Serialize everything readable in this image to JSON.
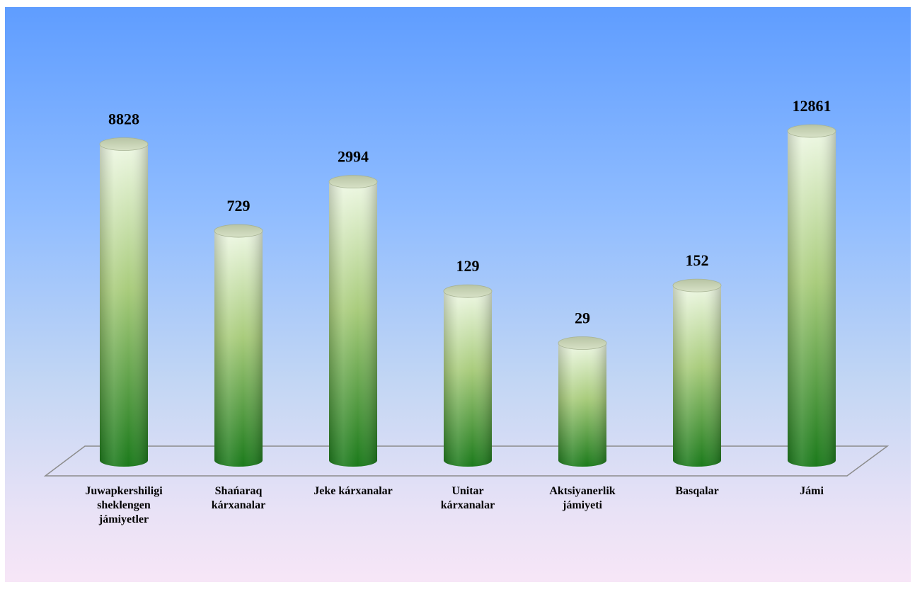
{
  "chart_data": {
    "type": "bar",
    "style": "3d-cylinder",
    "categories": [
      "Juwapkershiligi sheklengen jámiyetler",
      "Shańaraq kárxanalar",
      "Jeke kárxanalar",
      "Unitar kárxanalar",
      "Aktsiyanerlik jámiyeti",
      "Basqalar",
      "Jámi"
    ],
    "category_lines": [
      [
        "Juwapkershiligi",
        "sheklengen",
        "jámiyetler"
      ],
      [
        "Shańaraq",
        "kárxanalar"
      ],
      [
        "Jeke kárxanalar"
      ],
      [
        "Unitar",
        "kárxanalar"
      ],
      [
        "Aktsiyanerlik",
        "jámiyeti"
      ],
      [
        "Basqalar"
      ],
      [
        "Jámi"
      ]
    ],
    "values": [
      8828,
      729,
      2994,
      129,
      29,
      152,
      12861
    ],
    "value_labels": [
      "8828",
      "729",
      "2994",
      "129",
      "29",
      "152",
      "12861"
    ],
    "scale": "non-linear (log-like)",
    "colors": {
      "bar_top": "#eef8e4",
      "bar_mid": "#a9cc7c",
      "bar_bottom": "#1b7a1b",
      "background_top": "#5f9dff",
      "background_bottom": "#f7e6f7"
    },
    "grid": false,
    "legend": "none"
  }
}
